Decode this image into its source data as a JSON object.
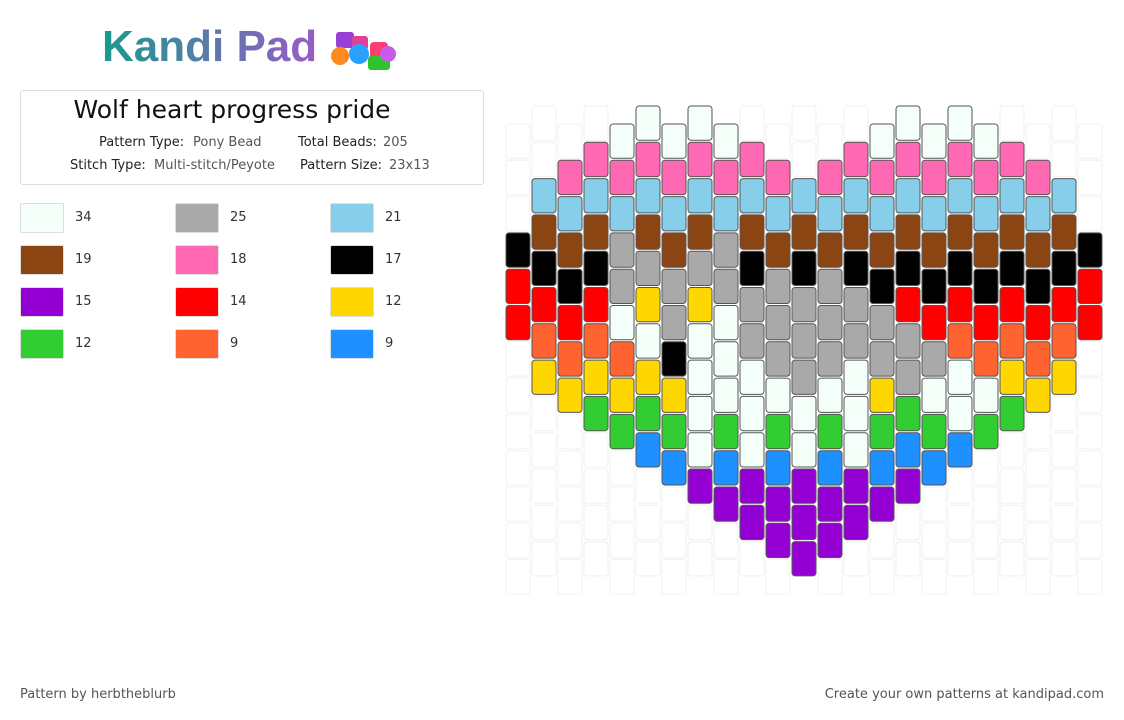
{
  "logo": "Kandi Pad",
  "pattern": {
    "title": "Wolf heart progress pride",
    "type_label": "Pattern Type:",
    "type": "Pony Bead",
    "beads_label": "Total Beads:",
    "beads": 205,
    "stitch_label": "Stitch Type:",
    "stitch": "Multi-stitch/Peyote",
    "size_label": "Pattern Size:",
    "size": "23x13"
  },
  "legend": [
    {
      "color": "#f5fffa",
      "count": 34
    },
    {
      "color": "#a9a9a9",
      "count": 25
    },
    {
      "color": "#87ceeb",
      "count": 21
    },
    {
      "color": "#8b4513",
      "count": 19
    },
    {
      "color": "#ff69b4",
      "count": 18
    },
    {
      "color": "#000000",
      "count": 17
    },
    {
      "color": "#9400d3",
      "count": 15
    },
    {
      "color": "#ff0000",
      "count": 14
    },
    {
      "color": "#ffd700",
      "count": 12
    },
    {
      "color": "#32cd32",
      "count": 12
    },
    {
      "color": "#ff6330",
      "count": 9
    },
    {
      "color": "#1e90ff",
      "count": 9
    }
  ],
  "footer": {
    "author": "Pattern by herbtheblurb",
    "site": "Create your own patterns at kandipad.com"
  }
}
